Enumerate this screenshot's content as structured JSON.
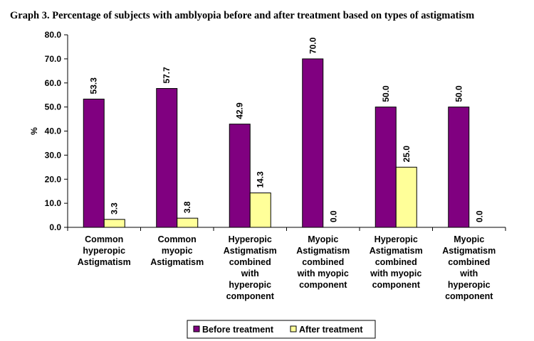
{
  "chart_data": {
    "type": "bar",
    "title": "Graph 3. Percentage of subjects with amblyopia before and after treatment based on types of astigmatism",
    "ylabel": "%",
    "xlabel": "",
    "ylim": [
      0,
      80
    ],
    "yticks": [
      "0.0",
      "10.0",
      "20.0",
      "30.0",
      "40.0",
      "50.0",
      "60.0",
      "70.0",
      "80.0"
    ],
    "categories": [
      [
        "Common",
        "hyperopic",
        "Astigmatism"
      ],
      [
        "Common",
        "myopic",
        "Astigmatism"
      ],
      [
        "Hyperopic",
        "Astigmatism",
        "combined",
        "with",
        "hyperopic",
        "component"
      ],
      [
        "Myopic",
        "Astigmatism",
        "combined",
        "with myopic",
        "component"
      ],
      [
        "Hyperopic",
        "Astigmatism",
        "combined",
        "with myopic",
        "component"
      ],
      [
        "Myopic",
        "Astigmatism",
        "combined",
        "with",
        "hyperopic",
        "component"
      ]
    ],
    "series": [
      {
        "name": "Before treatment",
        "color": "#800080",
        "values": [
          53.3,
          57.7,
          42.9,
          70.0,
          50.0,
          50.0
        ],
        "labels": [
          "53.3",
          "57.7",
          "42.9",
          "70.0",
          "50.0",
          "50.0"
        ]
      },
      {
        "name": "After treatment",
        "color": "#ffff99",
        "values": [
          3.3,
          3.8,
          14.3,
          0.0,
          25.0,
          0.0
        ],
        "labels": [
          "3.3",
          "3.8",
          "14.3",
          "0.0",
          "25.0",
          "0.0"
        ]
      }
    ],
    "legend_position": "bottom",
    "grid": false
  }
}
